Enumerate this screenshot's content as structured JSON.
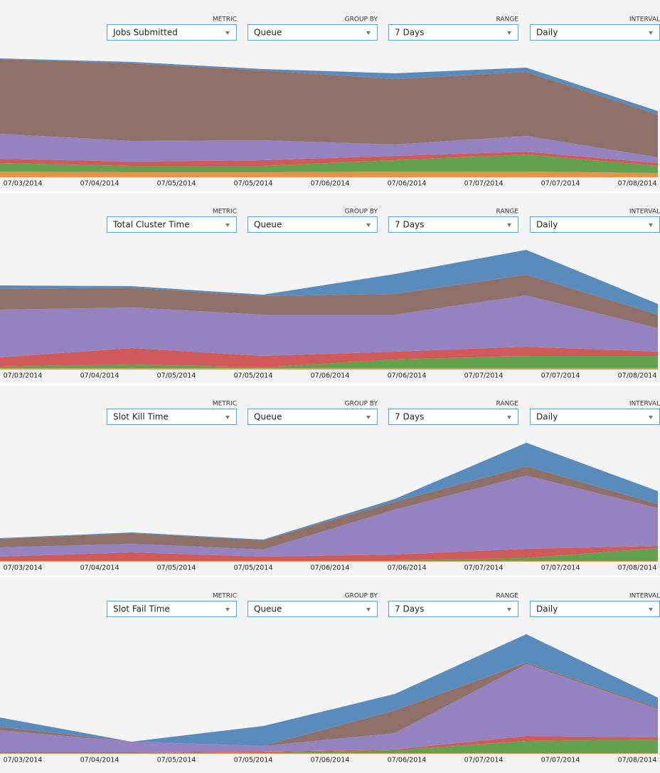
{
  "panels": [
    {
      "controls": [
        {
          "label": "METRIC",
          "value": "Jobs Submitted"
        },
        {
          "label": "GROUP BY",
          "value": "Queue"
        },
        {
          "label": "RANGE",
          "value": "7 Days"
        },
        {
          "label": "INTERVAL",
          "value": "Daily"
        }
      ]
    },
    {
      "controls": [
        {
          "label": "METRIC",
          "value": "Total Cluster Time"
        },
        {
          "label": "GROUP BY",
          "value": "Queue"
        },
        {
          "label": "RANGE",
          "value": "7 Days"
        },
        {
          "label": "INTERVAL",
          "value": "Daily"
        }
      ]
    },
    {
      "controls": [
        {
          "label": "METRIC",
          "value": "Slot Kill Time"
        },
        {
          "label": "GROUP BY",
          "value": "Queue"
        },
        {
          "label": "RANGE",
          "value": "7 Days"
        },
        {
          "label": "INTERVAL",
          "value": "Daily"
        }
      ]
    },
    {
      "controls": [
        {
          "label": "METRIC",
          "value": "Slot Fail Time"
        },
        {
          "label": "GROUP BY",
          "value": "Queue"
        },
        {
          "label": "RANGE",
          "value": "7 Days"
        },
        {
          "label": "INTERVAL",
          "value": "Daily"
        }
      ]
    }
  ],
  "chart_data": [
    {
      "type": "area",
      "stacked": true,
      "ylim": [
        0,
        190
      ],
      "xtick_labels": [
        "07/03/2014",
        "07/04/2014",
        "07/05/2014",
        "07/05/2014",
        "07/06/2014",
        "07/06/2014",
        "07/07/2014",
        "07/07/2014",
        "07/08/2014"
      ],
      "series": [
        {
          "color": "#e8924a",
          "values": [
            8,
            7,
            7,
            8,
            8,
            6
          ]
        },
        {
          "color": "#62a24e",
          "values": [
            12,
            9,
            9,
            16,
            24,
            10
          ]
        },
        {
          "color": "#d05a5a",
          "values": [
            6,
            6,
            8,
            6,
            4,
            4
          ]
        },
        {
          "color": "#9583c1",
          "values": [
            35,
            29,
            28,
            16,
            22,
            8
          ]
        },
        {
          "color": "#8f716a",
          "values": [
            105,
            109,
            98,
            92,
            90,
            60
          ]
        },
        {
          "color": "#5a8bbd",
          "values": [
            1,
            2,
            2,
            8,
            6,
            5
          ]
        }
      ]
    },
    {
      "type": "area",
      "stacked": true,
      "ylim": [
        0,
        190
      ],
      "xtick_labels": [
        "07/03/2014",
        "07/04/2014",
        "07/05/2014",
        "07/05/2014",
        "07/06/2014",
        "07/06/2014",
        "07/07/2014",
        "07/07/2014",
        "07/08/2014"
      ],
      "series": [
        {
          "color": "#e8924a",
          "values": [
            2,
            2,
            2,
            2,
            2,
            2
          ]
        },
        {
          "color": "#62a24e",
          "values": [
            2,
            5,
            1,
            12,
            17,
            17
          ]
        },
        {
          "color": "#d05a5a",
          "values": [
            13,
            23,
            16,
            11,
            13,
            6
          ]
        },
        {
          "color": "#9583c1",
          "values": [
            67,
            57,
            58,
            52,
            72,
            33
          ]
        },
        {
          "color": "#8f716a",
          "values": [
            29,
            28,
            26,
            29,
            29,
            19
          ]
        },
        {
          "color": "#5a8bbd",
          "values": [
            5,
            2,
            2,
            28,
            35,
            15
          ]
        }
      ]
    },
    {
      "type": "area",
      "stacked": true,
      "ylim": [
        0,
        190
      ],
      "xtick_labels": [
        "07/03/2014",
        "07/04/2014",
        "07/05/2014",
        "07/05/2014",
        "07/06/2014",
        "07/06/2014",
        "07/07/2014",
        "07/07/2014",
        "07/08/2014"
      ],
      "series": [
        {
          "color": "#e8924a",
          "values": [
            1,
            1,
            1,
            1,
            1,
            1
          ]
        },
        {
          "color": "#62a24e",
          "values": [
            1,
            1,
            1,
            1,
            4,
            18
          ]
        },
        {
          "color": "#d05a5a",
          "values": [
            5,
            11,
            5,
            8,
            13,
            3
          ]
        },
        {
          "color": "#9583c1",
          "values": [
            13,
            12,
            10,
            63,
            103,
            53
          ]
        },
        {
          "color": "#8f716a",
          "values": [
            12,
            15,
            13,
            11,
            13,
            6
          ]
        },
        {
          "color": "#5a8bbd",
          "values": [
            1,
            1,
            1,
            4,
            33,
            18
          ]
        }
      ]
    },
    {
      "type": "area",
      "stacked": true,
      "ylim": [
        0,
        190
      ],
      "xtick_labels": [
        "07/03/2014",
        "07/04/2014",
        "07/05/2014",
        "07/05/2014",
        "07/06/2014",
        "07/06/2014",
        "07/07/2014",
        "07/07/2014",
        "07/08/2014"
      ],
      "series": [
        {
          "color": "#e8924a",
          "values": [
            1,
            1,
            1,
            1,
            1,
            1
          ]
        },
        {
          "color": "#62a24e",
          "values": [
            0,
            0,
            1,
            4,
            17,
            19
          ]
        },
        {
          "color": "#d05a5a",
          "values": [
            1,
            1,
            1,
            1,
            7,
            3
          ]
        },
        {
          "color": "#9583c1",
          "values": [
            31,
            15,
            8,
            23,
            101,
            40
          ]
        },
        {
          "color": "#8f716a",
          "values": [
            5,
            0,
            0,
            32,
            2,
            2
          ]
        },
        {
          "color": "#5a8bbd",
          "values": [
            13,
            0,
            28,
            23,
            40,
            14
          ]
        }
      ]
    }
  ]
}
